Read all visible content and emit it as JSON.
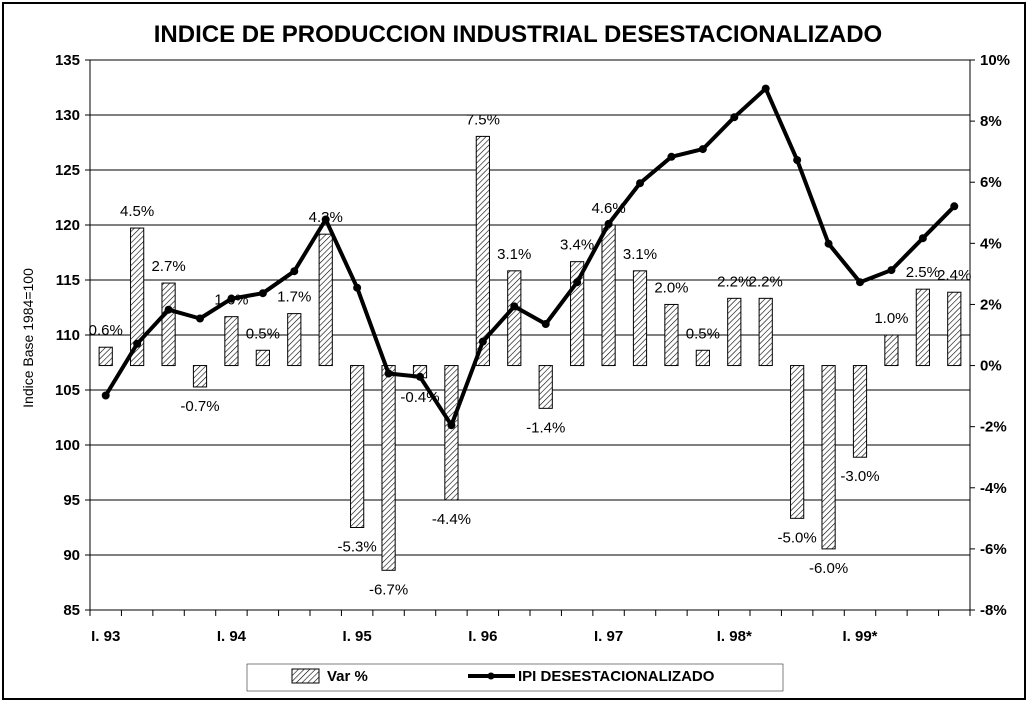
{
  "chart_data": {
    "type": "bar+line",
    "title": "INDICE DE PRODUCCION INDUSTRIAL DESESTACIONALIZADO",
    "ylabel": "Indice Base 1984=100",
    "y2label": "",
    "ylim": [
      85,
      135
    ],
    "y_ticks": [
      "85",
      "90",
      "95",
      "100",
      "105",
      "110",
      "115",
      "120",
      "125",
      "130",
      "135"
    ],
    "y2lim": [
      -8,
      10
    ],
    "y2_ticks": [
      "-8%",
      "-6%",
      "-4%",
      "-2%",
      "0%",
      "2%",
      "4%",
      "6%",
      "8%",
      "10%"
    ],
    "x_tick_labels": [
      "I. 93",
      "I. 94",
      "I. 95",
      "I. 96",
      "I. 97",
      "I. 98*",
      "I. 99*"
    ],
    "grid": "horizontal",
    "legend_position": "bottom",
    "series": [
      {
        "name": "Var %",
        "type": "bar",
        "axis": "right",
        "values": [
          0.6,
          4.5,
          2.7,
          -0.7,
          1.6,
          0.5,
          1.7,
          4.3,
          -5.3,
          -6.7,
          -0.4,
          -4.4,
          7.5,
          3.1,
          -1.4,
          3.4,
          4.6,
          3.1,
          2.0,
          0.5,
          2.2,
          2.2,
          -5.0,
          -6.0,
          -3.0,
          1.0,
          2.5,
          2.4
        ],
        "labels": [
          "0.6%",
          "4.5%",
          "2.7%",
          "-0.7%",
          "1.6%",
          "0.5%",
          "1.7%",
          "4.3%",
          "-5.3%",
          "-6.7%",
          "-0.4%",
          "-4.4%",
          "7.5%",
          "3.1%",
          "-1.4%",
          "3.4%",
          "4.6%",
          "3.1%",
          "2.0%",
          "0.5%",
          "2.2%",
          "2.2%",
          "-5.0%",
          "-6.0%",
          "-3.0%",
          "1.0%",
          "2.5%",
          "2.4%"
        ]
      },
      {
        "name": "IPI DESESTACIONALIZADO",
        "type": "line",
        "axis": "left",
        "values": [
          104.5,
          109.2,
          112.3,
          111.5,
          113.3,
          113.8,
          115.8,
          120.5,
          114.3,
          106.5,
          106.2,
          101.8,
          109.4,
          112.6,
          111.0,
          114.8,
          120.1,
          123.8,
          126.2,
          126.9,
          129.8,
          132.4,
          125.9,
          118.3,
          114.8,
          115.9,
          118.8,
          121.7
        ]
      }
    ]
  },
  "legend": {
    "bar_label": "Var %",
    "line_label": "IPI DESESTACIONALIZADO"
  },
  "colors": {
    "line": "#000000",
    "bar_hatch": "#000000",
    "background": "#ffffff"
  }
}
